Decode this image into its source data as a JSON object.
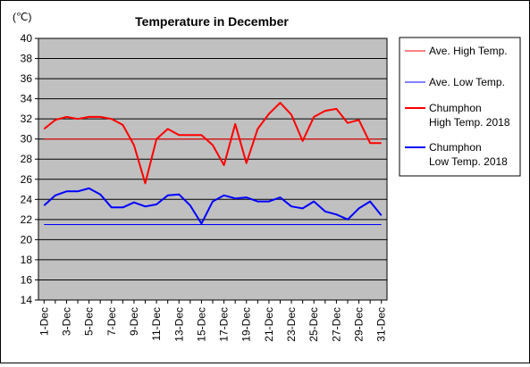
{
  "chart_data": {
    "type": "line",
    "title": "Temperature in December",
    "unit_label": "(℃)",
    "ylim": [
      14,
      40
    ],
    "yticks": [
      14,
      16,
      18,
      20,
      22,
      24,
      26,
      28,
      30,
      32,
      34,
      36,
      38,
      40
    ],
    "grid": true,
    "legend_position": "right",
    "x": [
      "1-Dec",
      "2-Dec",
      "3-Dec",
      "4-Dec",
      "5-Dec",
      "6-Dec",
      "7-Dec",
      "8-Dec",
      "9-Dec",
      "10-Dec",
      "11-Dec",
      "12-Dec",
      "13-Dec",
      "14-Dec",
      "15-Dec",
      "16-Dec",
      "17-Dec",
      "18-Dec",
      "19-Dec",
      "20-Dec",
      "21-Dec",
      "22-Dec",
      "23-Dec",
      "24-Dec",
      "25-Dec",
      "26-Dec",
      "27-Dec",
      "28-Dec",
      "29-Dec",
      "30-Dec",
      "31-Dec"
    ],
    "xticks": [
      "1-Dec",
      "3-Dec",
      "5-Dec",
      "7-Dec",
      "9-Dec",
      "11-Dec",
      "13-Dec",
      "15-Dec",
      "17-Dec",
      "19-Dec",
      "21-Dec",
      "23-Dec",
      "25-Dec",
      "27-Dec",
      "29-Dec",
      "31-Dec"
    ],
    "series": [
      {
        "name": "Ave. High Temp.",
        "color": "#ff0000",
        "width": 1,
        "values": [
          30,
          30,
          30,
          30,
          30,
          30,
          30,
          30,
          30,
          30,
          30,
          30,
          30,
          30,
          30,
          30,
          30,
          30,
          30,
          30,
          30,
          30,
          30,
          30,
          30,
          30,
          30,
          30,
          30,
          30,
          30
        ]
      },
      {
        "name": "Ave. Low Temp.",
        "color": "#0000ff",
        "width": 1,
        "values": [
          21.5,
          21.5,
          21.5,
          21.5,
          21.5,
          21.5,
          21.5,
          21.5,
          21.5,
          21.5,
          21.5,
          21.5,
          21.5,
          21.5,
          21.5,
          21.5,
          21.5,
          21.5,
          21.5,
          21.5,
          21.5,
          21.5,
          21.5,
          21.5,
          21.5,
          21.5,
          21.5,
          21.5,
          21.5,
          21.5,
          21.5
        ]
      },
      {
        "name": "Chumphon High Temp. 2018",
        "color": "#ff0000",
        "width": 2,
        "values": [
          31.0,
          31.9,
          32.2,
          32.0,
          32.2,
          32.2,
          32.0,
          31.4,
          29.4,
          25.6,
          30.0,
          31.0,
          30.4,
          30.4,
          30.4,
          29.4,
          27.4,
          31.5,
          27.6,
          31.0,
          32.5,
          33.6,
          32.4,
          29.8,
          32.2,
          32.8,
          33.0,
          31.6,
          31.9,
          29.6,
          29.6
        ]
      },
      {
        "name": "Chumphon Low Temp. 2018",
        "color": "#0000ff",
        "width": 2,
        "values": [
          23.4,
          24.4,
          24.8,
          24.8,
          25.1,
          24.5,
          23.2,
          23.2,
          23.7,
          23.3,
          23.5,
          24.4,
          24.5,
          23.4,
          21.6,
          23.8,
          24.4,
          24.1,
          24.2,
          23.8,
          23.8,
          24.2,
          23.3,
          23.1,
          23.8,
          22.8,
          22.5,
          22.0,
          23.1,
          23.8,
          22.4
        ]
      }
    ],
    "legend": [
      {
        "lines": [
          "Ave. High Temp."
        ],
        "color": "#ff0000",
        "width": 1
      },
      {
        "lines": [
          "Ave. Low Temp."
        ],
        "color": "#0000ff",
        "width": 1
      },
      {
        "lines": [
          "Chumphon",
          "High Temp. 2018"
        ],
        "color": "#ff0000",
        "width": 2
      },
      {
        "lines": [
          "Chumphon",
          "Low Temp. 2018"
        ],
        "color": "#0000ff",
        "width": 2
      }
    ],
    "colors": {
      "plot_background": "#c0c0c0",
      "grid": "#000000"
    }
  }
}
